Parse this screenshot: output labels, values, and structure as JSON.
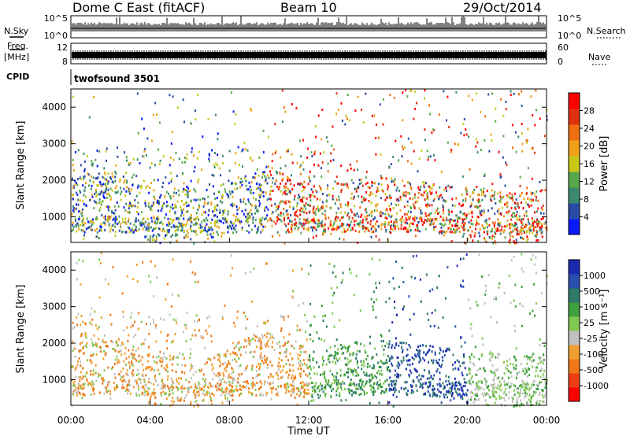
{
  "header": {
    "station": "Dome C East (fitACF)",
    "beam": "Beam 10",
    "date": "29/Oct/2014"
  },
  "nsky": {
    "left_label": "N.Sky",
    "tick_top": "10^5",
    "tick_bottom": "10^0",
    "right_label": "N.Search"
  },
  "freq": {
    "left_label": "Freq.",
    "unit": "[MHz]",
    "ticks_left": [
      "12",
      "8"
    ],
    "ticks_right": [
      "60",
      "0"
    ],
    "right_label": "Nave"
  },
  "cpid": {
    "label": "CPID",
    "value": "twofsound 3501"
  },
  "colors": {
    "power": [
      "#0a1aff",
      "#2a4aa8",
      "#3b8a6e",
      "#58a84a",
      "#c8c818",
      "#f0a018",
      "#f06e10",
      "#e03010",
      "#ff0000"
    ],
    "velocity": [
      "#ff0000",
      "#f03c14",
      "#f07818",
      "#f0a030",
      "#c0c0c0",
      "#80c850",
      "#3ca03c",
      "#2f7a6a",
      "#2850b0",
      "#1a2ab0"
    ]
  },
  "chart_data": [
    {
      "type": "heatmap",
      "name": "power",
      "title": "",
      "ylabel": "Slant Range [km]",
      "yticks": [
        "1000",
        "2000",
        "3000",
        "4000"
      ],
      "ylim": [
        300,
        4500
      ],
      "xlim": [
        0,
        24
      ],
      "colorbar_label": "Power [dB]",
      "colorbar_ticks": [
        "4",
        "8",
        "12",
        "16",
        "20",
        "24",
        "28"
      ],
      "colorbar_range": [
        0,
        32
      ]
    },
    {
      "type": "heatmap",
      "name": "velocity",
      "title": "",
      "ylabel": "Slant Range [km]",
      "yticks": [
        "1000",
        "2000",
        "3000",
        "4000"
      ],
      "ylim": [
        300,
        4500
      ],
      "xlim": [
        0,
        24
      ],
      "colorbar_label": "Velocity [m s⁻¹]",
      "colorbar_ticks": [
        "1000",
        "500",
        "100",
        "25",
        "-25",
        "-100",
        "-500",
        "-1000"
      ],
      "xlabel": "Time UT",
      "xticks": [
        "00:00",
        "04:00",
        "08:00",
        "12:00",
        "16:00",
        "20:00",
        "00:00"
      ]
    }
  ]
}
